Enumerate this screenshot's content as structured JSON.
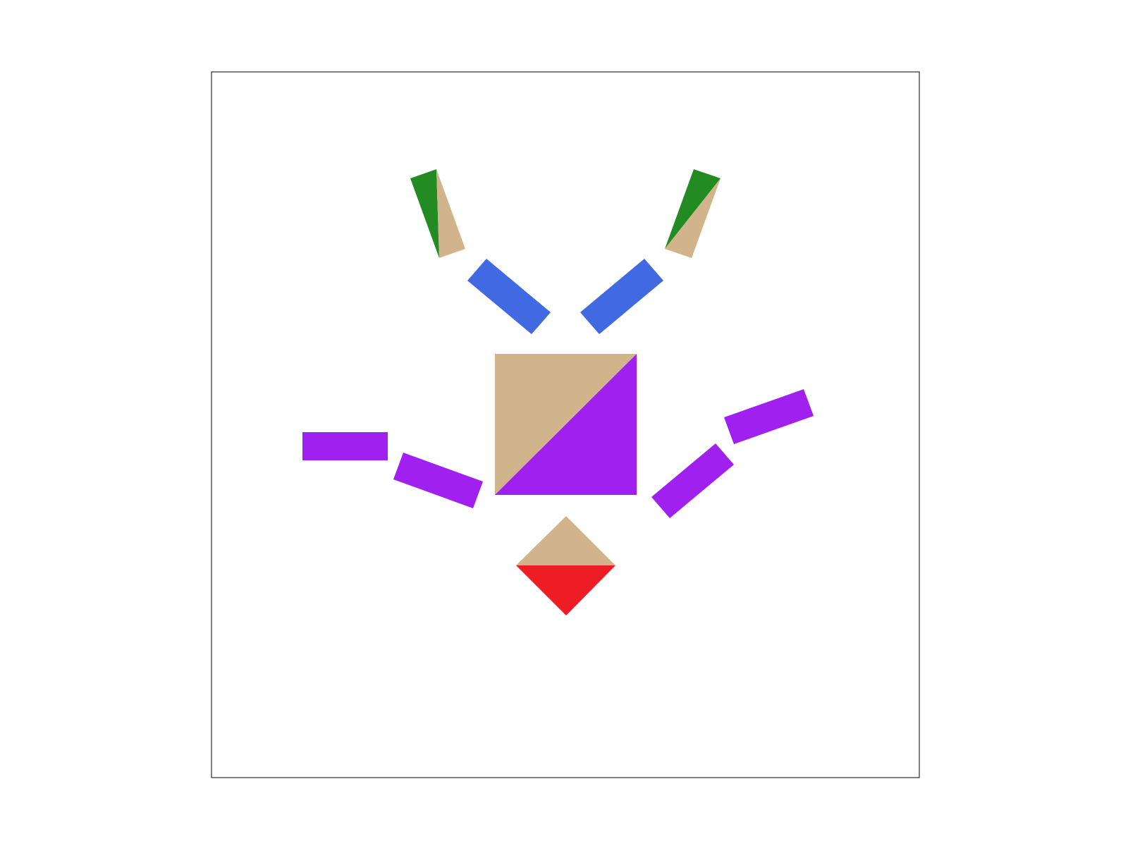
{
  "figure": {
    "background": "#ffffff",
    "frame_stroke": "#000000",
    "pieces": [
      {
        "name": "left-horn",
        "shape": "triangle-pair",
        "colors": [
          "#228b22",
          "#d2b48c"
        ]
      },
      {
        "name": "right-horn",
        "shape": "triangle-pair",
        "colors": [
          "#228b22",
          "#d2b48c"
        ]
      },
      {
        "name": "left-neck-bar",
        "shape": "bar",
        "color": "#4169e1"
      },
      {
        "name": "right-neck-bar",
        "shape": "bar",
        "color": "#4169e1"
      },
      {
        "name": "body-square",
        "shape": "split-square",
        "colors": [
          "#d2b48c",
          "#a020f0"
        ]
      },
      {
        "name": "left-arm-upper",
        "shape": "bar",
        "color": "#a020f0"
      },
      {
        "name": "left-arm-lower",
        "shape": "bar",
        "color": "#a020f0"
      },
      {
        "name": "right-arm-upper",
        "shape": "bar",
        "color": "#a020f0"
      },
      {
        "name": "right-arm-lower",
        "shape": "bar",
        "color": "#a020f0"
      },
      {
        "name": "bottom-diamond",
        "shape": "split-diamond",
        "colors": [
          "#d2b48c",
          "#ee1c25"
        ]
      }
    ]
  }
}
